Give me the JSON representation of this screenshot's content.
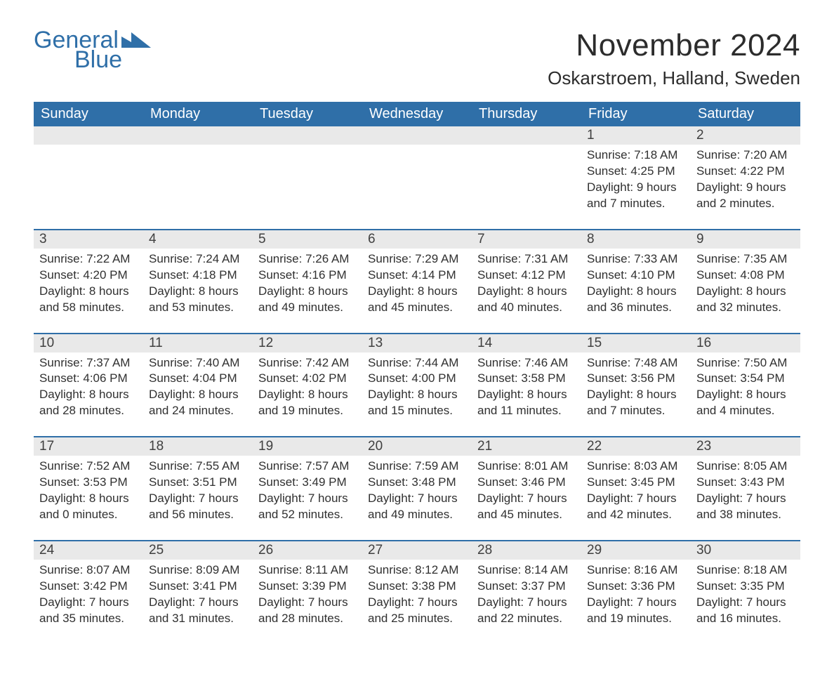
{
  "brand": {
    "part1": "General",
    "part2": "Blue",
    "brand_color": "#2f6fa8"
  },
  "title": "November 2024",
  "location": "Oskarstroem, Halland, Sweden",
  "columns": [
    "Sunday",
    "Monday",
    "Tuesday",
    "Wednesday",
    "Thursday",
    "Friday",
    "Saturday"
  ],
  "header_bg": "#2f6fa8",
  "header_fg": "#ffffff",
  "daynum_bg": "#e9e9e9",
  "daynum_border": "#2f6fa8",
  "text_color": "#303030",
  "font_family": "Segoe UI, Arial, Helvetica, sans-serif",
  "title_fontsize": 44,
  "location_fontsize": 26,
  "header_fontsize": 20,
  "daynum_fontsize": 19,
  "detail_fontsize": 17,
  "weeks": [
    [
      null,
      null,
      null,
      null,
      null,
      {
        "n": "1",
        "sunrise": "Sunrise: 7:18 AM",
        "sunset": "Sunset: 4:25 PM",
        "d1": "Daylight: 9 hours",
        "d2": "and 7 minutes."
      },
      {
        "n": "2",
        "sunrise": "Sunrise: 7:20 AM",
        "sunset": "Sunset: 4:22 PM",
        "d1": "Daylight: 9 hours",
        "d2": "and 2 minutes."
      }
    ],
    [
      {
        "n": "3",
        "sunrise": "Sunrise: 7:22 AM",
        "sunset": "Sunset: 4:20 PM",
        "d1": "Daylight: 8 hours",
        "d2": "and 58 minutes."
      },
      {
        "n": "4",
        "sunrise": "Sunrise: 7:24 AM",
        "sunset": "Sunset: 4:18 PM",
        "d1": "Daylight: 8 hours",
        "d2": "and 53 minutes."
      },
      {
        "n": "5",
        "sunrise": "Sunrise: 7:26 AM",
        "sunset": "Sunset: 4:16 PM",
        "d1": "Daylight: 8 hours",
        "d2": "and 49 minutes."
      },
      {
        "n": "6",
        "sunrise": "Sunrise: 7:29 AM",
        "sunset": "Sunset: 4:14 PM",
        "d1": "Daylight: 8 hours",
        "d2": "and 45 minutes."
      },
      {
        "n": "7",
        "sunrise": "Sunrise: 7:31 AM",
        "sunset": "Sunset: 4:12 PM",
        "d1": "Daylight: 8 hours",
        "d2": "and 40 minutes."
      },
      {
        "n": "8",
        "sunrise": "Sunrise: 7:33 AM",
        "sunset": "Sunset: 4:10 PM",
        "d1": "Daylight: 8 hours",
        "d2": "and 36 minutes."
      },
      {
        "n": "9",
        "sunrise": "Sunrise: 7:35 AM",
        "sunset": "Sunset: 4:08 PM",
        "d1": "Daylight: 8 hours",
        "d2": "and 32 minutes."
      }
    ],
    [
      {
        "n": "10",
        "sunrise": "Sunrise: 7:37 AM",
        "sunset": "Sunset: 4:06 PM",
        "d1": "Daylight: 8 hours",
        "d2": "and 28 minutes."
      },
      {
        "n": "11",
        "sunrise": "Sunrise: 7:40 AM",
        "sunset": "Sunset: 4:04 PM",
        "d1": "Daylight: 8 hours",
        "d2": "and 24 minutes."
      },
      {
        "n": "12",
        "sunrise": "Sunrise: 7:42 AM",
        "sunset": "Sunset: 4:02 PM",
        "d1": "Daylight: 8 hours",
        "d2": "and 19 minutes."
      },
      {
        "n": "13",
        "sunrise": "Sunrise: 7:44 AM",
        "sunset": "Sunset: 4:00 PM",
        "d1": "Daylight: 8 hours",
        "d2": "and 15 minutes."
      },
      {
        "n": "14",
        "sunrise": "Sunrise: 7:46 AM",
        "sunset": "Sunset: 3:58 PM",
        "d1": "Daylight: 8 hours",
        "d2": "and 11 minutes."
      },
      {
        "n": "15",
        "sunrise": "Sunrise: 7:48 AM",
        "sunset": "Sunset: 3:56 PM",
        "d1": "Daylight: 8 hours",
        "d2": "and 7 minutes."
      },
      {
        "n": "16",
        "sunrise": "Sunrise: 7:50 AM",
        "sunset": "Sunset: 3:54 PM",
        "d1": "Daylight: 8 hours",
        "d2": "and 4 minutes."
      }
    ],
    [
      {
        "n": "17",
        "sunrise": "Sunrise: 7:52 AM",
        "sunset": "Sunset: 3:53 PM",
        "d1": "Daylight: 8 hours",
        "d2": "and 0 minutes."
      },
      {
        "n": "18",
        "sunrise": "Sunrise: 7:55 AM",
        "sunset": "Sunset: 3:51 PM",
        "d1": "Daylight: 7 hours",
        "d2": "and 56 minutes."
      },
      {
        "n": "19",
        "sunrise": "Sunrise: 7:57 AM",
        "sunset": "Sunset: 3:49 PM",
        "d1": "Daylight: 7 hours",
        "d2": "and 52 minutes."
      },
      {
        "n": "20",
        "sunrise": "Sunrise: 7:59 AM",
        "sunset": "Sunset: 3:48 PM",
        "d1": "Daylight: 7 hours",
        "d2": "and 49 minutes."
      },
      {
        "n": "21",
        "sunrise": "Sunrise: 8:01 AM",
        "sunset": "Sunset: 3:46 PM",
        "d1": "Daylight: 7 hours",
        "d2": "and 45 minutes."
      },
      {
        "n": "22",
        "sunrise": "Sunrise: 8:03 AM",
        "sunset": "Sunset: 3:45 PM",
        "d1": "Daylight: 7 hours",
        "d2": "and 42 minutes."
      },
      {
        "n": "23",
        "sunrise": "Sunrise: 8:05 AM",
        "sunset": "Sunset: 3:43 PM",
        "d1": "Daylight: 7 hours",
        "d2": "and 38 minutes."
      }
    ],
    [
      {
        "n": "24",
        "sunrise": "Sunrise: 8:07 AM",
        "sunset": "Sunset: 3:42 PM",
        "d1": "Daylight: 7 hours",
        "d2": "and 35 minutes."
      },
      {
        "n": "25",
        "sunrise": "Sunrise: 8:09 AM",
        "sunset": "Sunset: 3:41 PM",
        "d1": "Daylight: 7 hours",
        "d2": "and 31 minutes."
      },
      {
        "n": "26",
        "sunrise": "Sunrise: 8:11 AM",
        "sunset": "Sunset: 3:39 PM",
        "d1": "Daylight: 7 hours",
        "d2": "and 28 minutes."
      },
      {
        "n": "27",
        "sunrise": "Sunrise: 8:12 AM",
        "sunset": "Sunset: 3:38 PM",
        "d1": "Daylight: 7 hours",
        "d2": "and 25 minutes."
      },
      {
        "n": "28",
        "sunrise": "Sunrise: 8:14 AM",
        "sunset": "Sunset: 3:37 PM",
        "d1": "Daylight: 7 hours",
        "d2": "and 22 minutes."
      },
      {
        "n": "29",
        "sunrise": "Sunrise: 8:16 AM",
        "sunset": "Sunset: 3:36 PM",
        "d1": "Daylight: 7 hours",
        "d2": "and 19 minutes."
      },
      {
        "n": "30",
        "sunrise": "Sunrise: 8:18 AM",
        "sunset": "Sunset: 3:35 PM",
        "d1": "Daylight: 7 hours",
        "d2": "and 16 minutes."
      }
    ]
  ]
}
